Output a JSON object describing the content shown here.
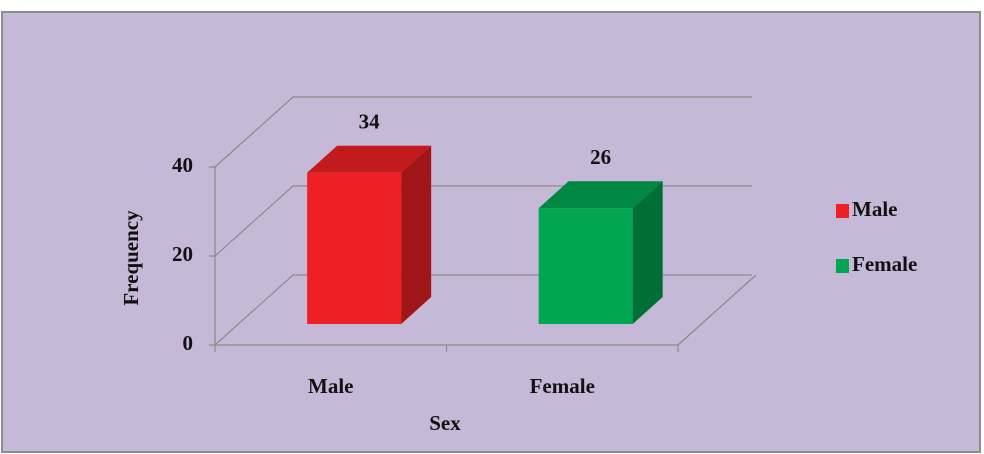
{
  "chart_data": {
    "type": "bar3d",
    "x_label": "Sex",
    "y_label": "Frequency",
    "categories": [
      "Male",
      "Female"
    ],
    "values": [
      34,
      26
    ],
    "colors": [
      "#ed2024",
      "#00a651"
    ],
    "ylim": [
      0,
      40
    ],
    "yticks": [
      0,
      20,
      40
    ],
    "grid": true,
    "legend": "right"
  }
}
